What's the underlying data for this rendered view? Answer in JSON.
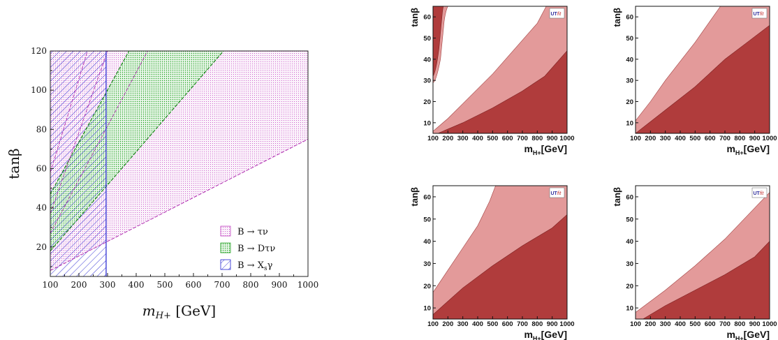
{
  "chart_data": [
    {
      "type": "area",
      "xlabel_var": "m",
      "xlabel_sub": "H+",
      "xlabel_unit": "[GeV]",
      "ylabel": "tanβ",
      "xlim": [
        100,
        1000
      ],
      "ylim": [
        5,
        120
      ],
      "x_ticks": [
        100,
        200,
        300,
        400,
        500,
        600,
        700,
        800,
        900,
        1000
      ],
      "y_ticks": [
        20,
        40,
        60,
        80,
        100,
        120
      ],
      "legend": [
        "B → τν",
        "B → Dτν",
        "B → Xsγ"
      ],
      "colors": {
        "B → τν": "#c040c0",
        "B → Dτν": "#20a020",
        "B → Xsγ": "#2020d0"
      },
      "series": [
        {
          "name": "B → τν",
          "region": "excluded above line tanβ = 8 + 0.074·(mH+ − 100) plus band between lines",
          "boundary": [
            [
              100,
              8
            ],
            [
              1000,
              75
            ]
          ]
        },
        {
          "name": "B → Dτν",
          "region": "band",
          "lower": [
            [
              100,
              18
            ],
            [
              705,
              120
            ]
          ],
          "upper": [
            [
              100,
              47
            ],
            [
              375,
              120
            ]
          ]
        },
        {
          "name": "B → Xsγ",
          "region": "excluded mH+ < 295",
          "xmax": 295
        }
      ]
    },
    {
      "type": "area",
      "ylabel": "tanβ",
      "xlabel": "m_H+[GeV]",
      "logo": "UTfit",
      "xlim": [
        100,
        1000
      ],
      "ylim": [
        5,
        65
      ],
      "x_ticks": [
        100,
        200,
        300,
        400,
        500,
        600,
        700,
        800,
        900,
        1000
      ],
      "y_ticks": [
        10,
        20,
        30,
        40,
        50,
        60
      ],
      "light_boundary": [
        [
          100,
          6
        ],
        [
          200,
          12
        ],
        [
          300,
          19
        ],
        [
          400,
          26
        ],
        [
          500,
          33
        ],
        [
          600,
          41
        ],
        [
          700,
          49
        ],
        [
          800,
          57
        ],
        [
          860,
          65
        ]
      ],
      "dark_boundary": [
        [
          100,
          4
        ],
        [
          300,
          10
        ],
        [
          500,
          17
        ],
        [
          700,
          25
        ],
        [
          850,
          32
        ],
        [
          1000,
          44
        ]
      ],
      "island": true
    },
    {
      "type": "area",
      "ylabel": "tanβ",
      "xlabel": "m_H+[GeV]",
      "logo": "UTfit",
      "xlim": [
        100,
        1000
      ],
      "ylim": [
        5,
        65
      ],
      "x_ticks": [
        100,
        200,
        300,
        400,
        500,
        600,
        700,
        800,
        900,
        1000
      ],
      "y_ticks": [
        10,
        20,
        30,
        40,
        50,
        60
      ],
      "light_boundary": [
        [
          100,
          11
        ],
        [
          200,
          20
        ],
        [
          300,
          30
        ],
        [
          400,
          39
        ],
        [
          500,
          48
        ],
        [
          600,
          58
        ],
        [
          670,
          65
        ]
      ],
      "dark_boundary": [
        [
          100,
          5
        ],
        [
          300,
          16
        ],
        [
          500,
          27
        ],
        [
          700,
          40
        ],
        [
          850,
          48
        ],
        [
          1000,
          56
        ]
      ]
    },
    {
      "type": "area",
      "ylabel": "tanβ",
      "xlabel": "m_H+[GeV]",
      "logo": "UTfit",
      "xlim": [
        100,
        1000
      ],
      "ylim": [
        5,
        65
      ],
      "x_ticks": [
        100,
        200,
        300,
        400,
        500,
        600,
        700,
        800,
        900,
        1000
      ],
      "y_ticks": [
        10,
        20,
        30,
        40,
        50,
        60
      ],
      "light_boundary": [
        [
          100,
          17
        ],
        [
          200,
          27
        ],
        [
          300,
          37
        ],
        [
          400,
          47
        ],
        [
          480,
          58
        ],
        [
          520,
          65
        ]
      ],
      "dark_boundary": [
        [
          100,
          7
        ],
        [
          300,
          19
        ],
        [
          500,
          29
        ],
        [
          700,
          38
        ],
        [
          900,
          46
        ],
        [
          1000,
          52
        ]
      ]
    },
    {
      "type": "area",
      "ylabel": "tanβ",
      "xlabel": "m_H+[GeV]",
      "logo": "UTfit",
      "xlim": [
        100,
        1000
      ],
      "ylim": [
        5,
        65
      ],
      "x_ticks": [
        100,
        200,
        300,
        400,
        500,
        600,
        700,
        800,
        900,
        1000
      ],
      "y_ticks": [
        10,
        20,
        30,
        40,
        50,
        60
      ],
      "light_boundary": [
        [
          100,
          8
        ],
        [
          300,
          18
        ],
        [
          500,
          29
        ],
        [
          700,
          41
        ],
        [
          900,
          55
        ],
        [
          1000,
          62
        ]
      ],
      "dark_boundary": [
        [
          100,
          3
        ],
        [
          300,
          11
        ],
        [
          500,
          18
        ],
        [
          700,
          25
        ],
        [
          900,
          33
        ],
        [
          1000,
          40
        ]
      ]
    }
  ]
}
